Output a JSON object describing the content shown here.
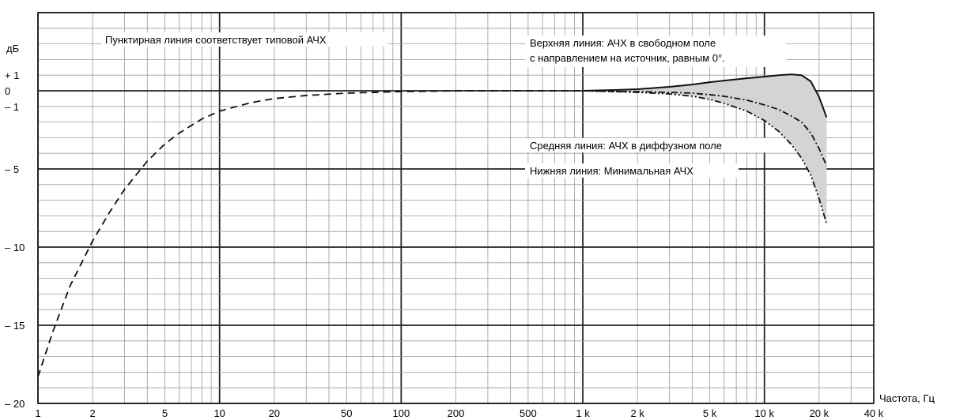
{
  "chart_data": {
    "type": "line",
    "x_scale": "log",
    "xlim": [
      1,
      40000
    ],
    "ylim": [
      -20,
      5
    ],
    "ylabel": "дБ",
    "xlabel": "Частота, Гц",
    "grid": true,
    "x_tick_labels": [
      {
        "x": 1,
        "label": "1"
      },
      {
        "x": 2,
        "label": "2"
      },
      {
        "x": 5,
        "label": "5"
      },
      {
        "x": 10,
        "label": "10"
      },
      {
        "x": 20,
        "label": "20"
      },
      {
        "x": 50,
        "label": "50"
      },
      {
        "x": 100,
        "label": "100"
      },
      {
        "x": 200,
        "label": "200"
      },
      {
        "x": 500,
        "label": "500"
      },
      {
        "x": 1000,
        "label": "1 k"
      },
      {
        "x": 2000,
        "label": "2 k"
      },
      {
        "x": 5000,
        "label": "5 k"
      },
      {
        "x": 10000,
        "label": "10 k"
      },
      {
        "x": 20000,
        "label": "20 k"
      },
      {
        "x": 40000,
        "label": "40 k"
      }
    ],
    "y_tick_labels": [
      {
        "y": 1,
        "label": "+ 1"
      },
      {
        "y": 0,
        "label": "0"
      },
      {
        "y": -1,
        "label": "– 1"
      },
      {
        "y": -5,
        "label": "– 5"
      },
      {
        "y": -10,
        "label": "– 10"
      },
      {
        "y": -15,
        "label": "– 15"
      },
      {
        "y": -20,
        "label": "– 20"
      }
    ],
    "series": [
      {
        "style": "dashed",
        "x": [
          1,
          1.2,
          1.5,
          2,
          2.5,
          3,
          4,
          5,
          6,
          8,
          10,
          15,
          20,
          30,
          50,
          100,
          200,
          500,
          1000
        ],
        "y": [
          -18.3,
          -15.5,
          -12.5,
          -9.6,
          -7.7,
          -6.3,
          -4.5,
          -3.4,
          -2.7,
          -1.8,
          -1.3,
          -0.75,
          -0.5,
          -0.3,
          -0.15,
          -0.05,
          0,
          0,
          0
        ]
      },
      {
        "style": "solid",
        "x": [
          1000,
          1500,
          2000,
          3000,
          4000,
          5000,
          6000,
          8000,
          10000,
          12000,
          14000,
          16000,
          18000,
          20000,
          22000
        ],
        "y": [
          0,
          0.05,
          0.1,
          0.25,
          0.4,
          0.55,
          0.65,
          0.8,
          0.9,
          1.0,
          1.05,
          1.0,
          0.6,
          -0.4,
          -1.7
        ]
      },
      {
        "style": "dash-dot",
        "x": [
          1000,
          1500,
          2000,
          3000,
          4000,
          5000,
          6000,
          8000,
          10000,
          12000,
          14000,
          16000,
          18000,
          20000,
          22000
        ],
        "y": [
          0,
          -0.05,
          -0.05,
          -0.1,
          -0.15,
          -0.25,
          -0.35,
          -0.6,
          -0.9,
          -1.2,
          -1.6,
          -2.0,
          -2.7,
          -3.7,
          -4.8
        ]
      },
      {
        "style": "dash-dot-dot",
        "x": [
          1000,
          1500,
          2000,
          3000,
          4000,
          5000,
          6000,
          8000,
          10000,
          12000,
          14000,
          16000,
          18000,
          20000,
          22000
        ],
        "y": [
          0,
          -0.05,
          -0.1,
          -0.2,
          -0.35,
          -0.55,
          -0.8,
          -1.3,
          -1.9,
          -2.6,
          -3.4,
          -4.3,
          -5.4,
          -6.9,
          -8.5
        ]
      }
    ],
    "annotations": [
      {
        "text": "Пунктирная линия соответствует типовой АЧХ"
      },
      {
        "text": "Верхняя линия: АЧХ в свободном поле"
      },
      {
        "text": "с направлением на источник, равным 0°."
      },
      {
        "text": "Средняя линия: АЧХ в диффузном поле"
      },
      {
        "text": "Нижняя линия: Минимальная АЧХ"
      }
    ]
  }
}
